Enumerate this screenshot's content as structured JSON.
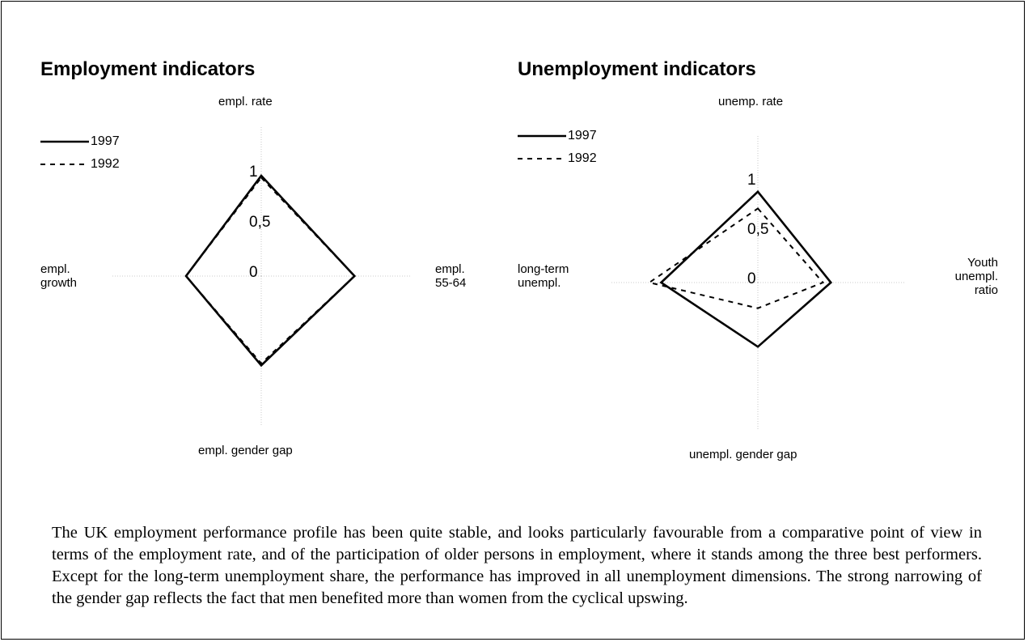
{
  "chart_data": [
    {
      "type": "radar",
      "title": "Employment indicators",
      "axes": [
        "empl. rate",
        "empl.\n55-64",
        "empl. gender gap",
        "empl.\ngrowth"
      ],
      "series": [
        {
          "name": "1997",
          "color": "#000000",
          "style": "solid",
          "values": [
            1.0,
            0.93,
            0.89,
            0.75
          ]
        },
        {
          "name": "1992",
          "color": "#000000",
          "style": "dashed",
          "values": [
            0.98,
            0.93,
            0.87,
            0.75
          ]
        }
      ],
      "rlim": [
        0,
        1.5
      ],
      "rticks": [
        0,
        {
          "value": 0.5,
          "label": "0,5"
        },
        1
      ]
    },
    {
      "type": "radar",
      "title": "Unemployment indicators",
      "axes": [
        "unemp. rate",
        "Youth\nunempl.\nratio",
        "unempl. gender gap",
        "long-term\nunempl."
      ],
      "series": [
        {
          "name": "1997",
          "color": "#000000",
          "style": "solid",
          "values": [
            0.92,
            0.74,
            0.65,
            0.98
          ]
        },
        {
          "name": "1992",
          "color": "#000000",
          "style": "dashed",
          "values": [
            0.75,
            0.66,
            0.26,
            1.1
          ]
        }
      ],
      "rlim": [
        0,
        1.5
      ],
      "rticks": [
        0,
        {
          "value": 0.5,
          "label": "0,5"
        },
        1
      ]
    }
  ],
  "paragraph": "The UK employment performance profile has been quite stable, and looks particularly favourable from a comparative point of view in terms of the employment rate, and of the participation of older persons in employment, where it stands among the three best performers. Except for the long-term unemployment share, the performance has improved in all unemployment dimensions. The strong narrowing of the gender gap reflects the fact that men benefited more than women from the cyclical upswing."
}
